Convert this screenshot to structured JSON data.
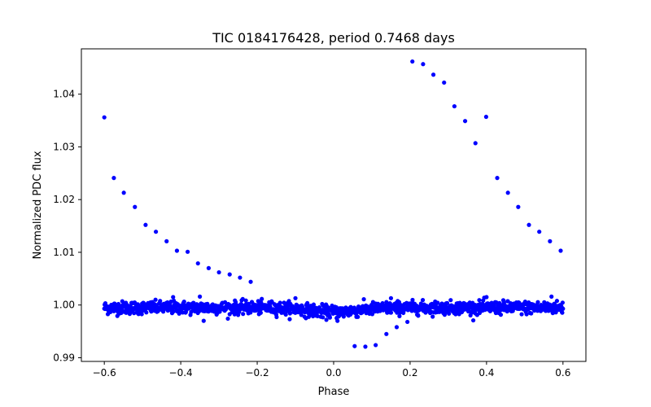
{
  "chart_data": {
    "type": "scatter",
    "title": "TIC 0184176428, period 0.7468 days",
    "xlabel": "Phase",
    "ylabel": "Normalized PDC flux",
    "xlim": [
      -0.66,
      0.66
    ],
    "ylim": [
      0.9893,
      1.0486
    ],
    "xticks": [
      -0.6,
      -0.4,
      -0.2,
      0.0,
      0.2,
      0.4,
      0.6
    ],
    "xtick_labels": [
      "−0.6",
      "−0.4",
      "−0.2",
      "0.0",
      "0.2",
      "0.4",
      "0.6"
    ],
    "yticks": [
      0.99,
      1.0,
      1.01,
      1.02,
      1.03,
      1.04
    ],
    "ytick_labels": [
      "0.99",
      "1.00",
      "1.01",
      "1.02",
      "1.03",
      "1.04"
    ],
    "grid": false,
    "marker_color": "#0000ff",
    "baseline": {
      "x_range": [
        -0.6,
        0.6
      ],
      "level": 0.9995,
      "scatter": 0.0006,
      "dip_center": 0.0,
      "dip_depth": 0.0008,
      "dip_width": 0.09,
      "count": 1300,
      "outliers": [
        {
          "x": -0.42,
          "y": 1.0015
        },
        {
          "x": -0.35,
          "y": 1.0016
        },
        {
          "x": -0.34,
          "y": 0.997
        },
        {
          "x": -0.1,
          "y": 1.0013
        },
        {
          "x": 0.15,
          "y": 1.0013
        },
        {
          "x": 0.4,
          "y": 1.0015
        },
        {
          "x": 0.57,
          "y": 1.0016
        },
        {
          "x": 0.01,
          "y": 0.997
        }
      ]
    },
    "points": [
      {
        "x": -0.6,
        "y": 1.0356
      },
      {
        "x": -0.575,
        "y": 1.0241
      },
      {
        "x": -0.549,
        "y": 1.0213
      },
      {
        "x": -0.52,
        "y": 1.0186
      },
      {
        "x": -0.492,
        "y": 1.0152
      },
      {
        "x": -0.465,
        "y": 1.0139
      },
      {
        "x": -0.437,
        "y": 1.0121
      },
      {
        "x": -0.41,
        "y": 1.0103
      },
      {
        "x": -0.382,
        "y": 1.0101
      },
      {
        "x": -0.355,
        "y": 1.0079
      },
      {
        "x": -0.327,
        "y": 1.007
      },
      {
        "x": -0.3,
        "y": 1.0062
      },
      {
        "x": -0.272,
        "y": 1.0058
      },
      {
        "x": -0.245,
        "y": 1.0052
      },
      {
        "x": -0.217,
        "y": 1.0044
      },
      {
        "x": 0.055,
        "y": 0.9922
      },
      {
        "x": 0.083,
        "y": 0.9921
      },
      {
        "x": 0.11,
        "y": 0.9924
      },
      {
        "x": 0.138,
        "y": 0.9945
      },
      {
        "x": 0.165,
        "y": 0.9958
      },
      {
        "x": 0.193,
        "y": 0.9968
      },
      {
        "x": 0.206,
        "y": 1.0462
      },
      {
        "x": 0.234,
        "y": 1.0457
      },
      {
        "x": 0.261,
        "y": 1.0437
      },
      {
        "x": 0.289,
        "y": 1.0422
      },
      {
        "x": 0.316,
        "y": 1.0377
      },
      {
        "x": 0.344,
        "y": 1.0349
      },
      {
        "x": 0.371,
        "y": 1.0307
      },
      {
        "x": 0.399,
        "y": 1.0357
      },
      {
        "x": 0.428,
        "y": 1.0241
      },
      {
        "x": 0.456,
        "y": 1.0213
      },
      {
        "x": 0.483,
        "y": 1.0186
      },
      {
        "x": 0.511,
        "y": 1.0152
      },
      {
        "x": 0.538,
        "y": 1.0139
      },
      {
        "x": 0.566,
        "y": 1.0121
      },
      {
        "x": 0.594,
        "y": 1.0103
      }
    ]
  }
}
